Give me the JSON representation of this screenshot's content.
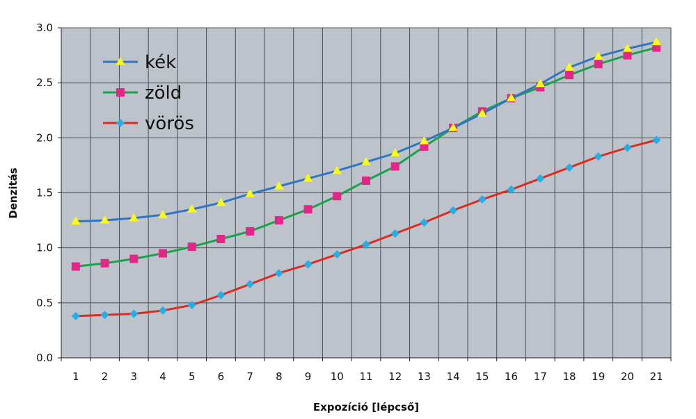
{
  "chart_data": {
    "type": "line",
    "title": "",
    "xlabel": "Expozíció [lépcső]",
    "ylabel": "Denzitás",
    "x": [
      1,
      2,
      3,
      4,
      5,
      6,
      7,
      8,
      9,
      10,
      11,
      12,
      13,
      14,
      15,
      16,
      17,
      18,
      19,
      20,
      21
    ],
    "ylim": [
      0,
      3
    ],
    "yticks": [
      "0.0",
      "0.5",
      "1.0",
      "1.5",
      "2.0",
      "2.5",
      "3.0"
    ],
    "grid": true,
    "legend_position": "top-left inside",
    "series": [
      {
        "name": "kék",
        "color": "#2e75c4",
        "marker": "triangle",
        "marker_color": "#ffff00",
        "values": [
          1.24,
          1.25,
          1.27,
          1.3,
          1.35,
          1.41,
          1.49,
          1.56,
          1.63,
          1.7,
          1.78,
          1.86,
          1.97,
          2.09,
          2.22,
          2.36,
          2.49,
          2.64,
          2.74,
          2.81,
          2.87
        ]
      },
      {
        "name": "zöld",
        "color": "#16a34a",
        "marker": "square",
        "marker_color": "#e8238a",
        "values": [
          0.83,
          0.86,
          0.9,
          0.95,
          1.01,
          1.08,
          1.15,
          1.25,
          1.35,
          1.47,
          1.61,
          1.74,
          1.92,
          2.09,
          2.24,
          2.36,
          2.46,
          2.57,
          2.67,
          2.75,
          2.82
        ]
      },
      {
        "name": "vörös",
        "color": "#e02a1e",
        "marker": "diamond",
        "marker_color": "#1eb0e8",
        "values": [
          0.38,
          0.39,
          0.4,
          0.43,
          0.48,
          0.57,
          0.67,
          0.77,
          0.85,
          0.94,
          1.03,
          1.13,
          1.23,
          1.34,
          1.44,
          1.53,
          1.63,
          1.73,
          1.83,
          1.91,
          1.98
        ]
      }
    ],
    "colors": {
      "plot_background": "#bcc3cb",
      "grid": "#4a4f55"
    }
  }
}
